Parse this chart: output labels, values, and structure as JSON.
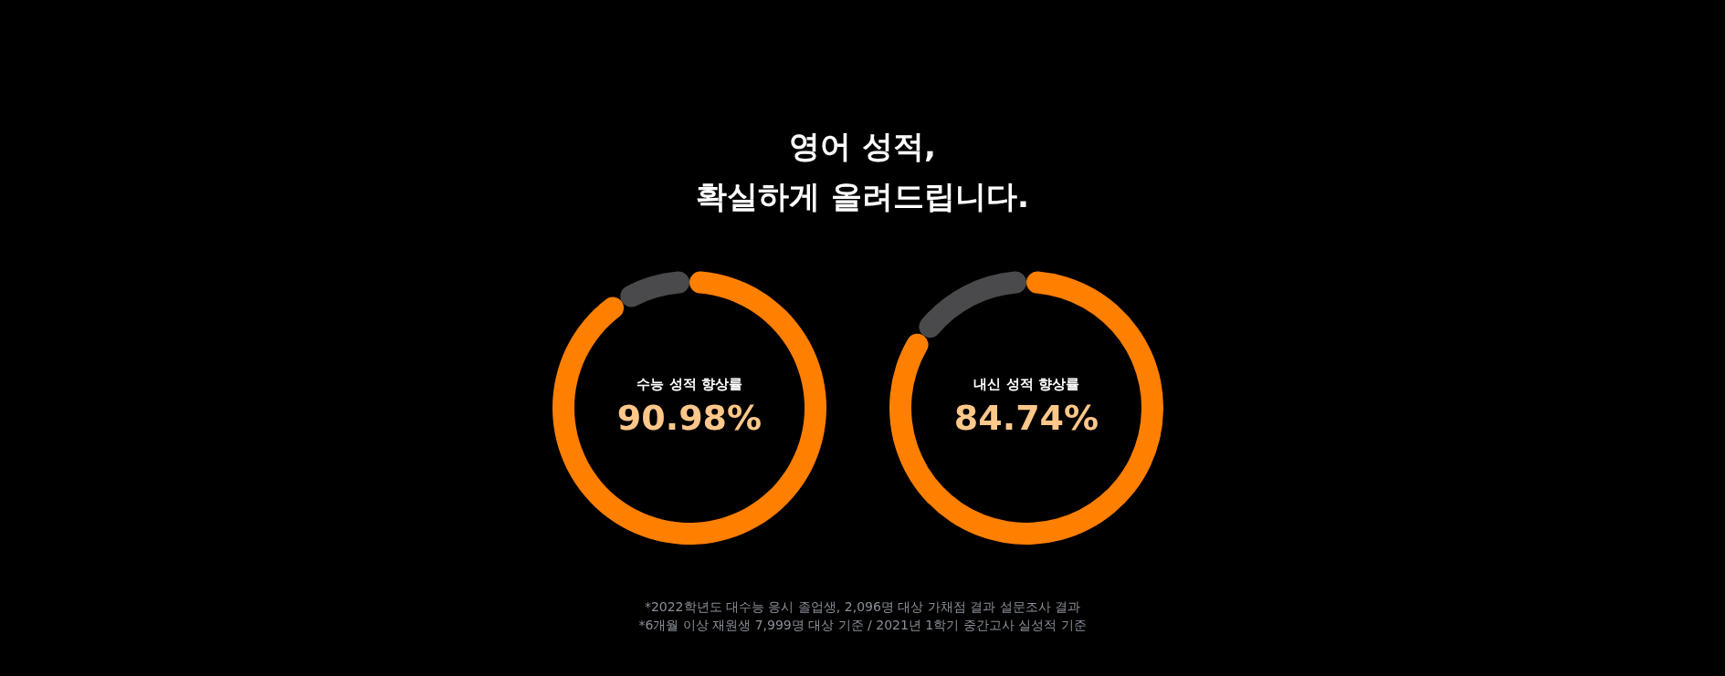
{
  "chart_data": [
    {
      "type": "other",
      "title": "영어 성적,\n확실하게 올려드립니다.",
      "annotations": [
        "*2022학년도 대수능 응시 졸업생, 2,096명 대상 가채점 결과 설문조사 결과",
        "*6개월 이상 재원생 7,999명 대상 기준 / 2021년 1학기 중간고사 실성적 기준"
      ]
    },
    {
      "type": "donut",
      "title": "수능 성적 향상률",
      "categories": [
        null,
        null
      ],
      "values": [
        90.98,
        9.02
      ],
      "colors": [
        "#ff7f00",
        "#4a4a4d"
      ],
      "value_labels": [
        "90.98%",
        null
      ]
    },
    {
      "type": "donut",
      "title": "내신 성적 향상률",
      "categories": [
        null,
        null
      ],
      "values": [
        84.74,
        15.26
      ],
      "colors": [
        "#ff7f00",
        "#4a4a4d"
      ],
      "value_labels": [
        "84.74%",
        null
      ]
    }
  ]
}
